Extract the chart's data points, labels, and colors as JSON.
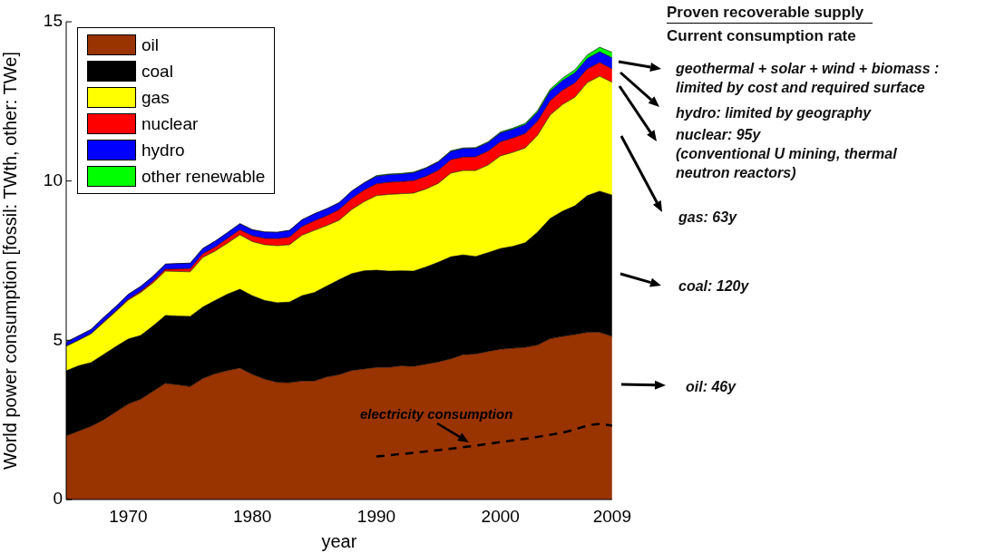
{
  "chart_data": {
    "type": "area",
    "stacked": true,
    "xlabel": "year",
    "ylabel": "World power consumption [fossil: TWth, other: TWe]",
    "x": [
      1965,
      1966,
      1967,
      1968,
      1969,
      1970,
      1971,
      1972,
      1973,
      1974,
      1975,
      1976,
      1977,
      1978,
      1979,
      1980,
      1981,
      1982,
      1983,
      1984,
      1985,
      1986,
      1987,
      1988,
      1989,
      1990,
      1991,
      1992,
      1993,
      1994,
      1995,
      1996,
      1997,
      1998,
      1999,
      2000,
      2001,
      2002,
      2003,
      2004,
      2005,
      2006,
      2007,
      2008,
      2009
    ],
    "xlim": [
      1965,
      2009
    ],
    "xticks": [
      1970,
      1980,
      1990,
      2000,
      2009
    ],
    "ylim": [
      0,
      15
    ],
    "yticks": [
      0,
      5,
      10,
      15
    ],
    "legend": "top left",
    "series": [
      {
        "name": "oil",
        "color": "#993300",
        "values": [
          2.0,
          2.15,
          2.3,
          2.5,
          2.75,
          3.0,
          3.15,
          3.4,
          3.65,
          3.6,
          3.55,
          3.8,
          3.95,
          4.05,
          4.13,
          3.93,
          3.78,
          3.68,
          3.67,
          3.72,
          3.72,
          3.85,
          3.92,
          4.05,
          4.1,
          4.15,
          4.15,
          4.2,
          4.18,
          4.25,
          4.32,
          4.42,
          4.55,
          4.57,
          4.65,
          4.72,
          4.75,
          4.78,
          4.85,
          5.05,
          5.12,
          5.18,
          5.25,
          5.25,
          5.12
        ]
      },
      {
        "name": "coal",
        "color": "#000000",
        "values": [
          2.04,
          2.05,
          2.0,
          2.05,
          2.05,
          2.04,
          2.0,
          2.05,
          2.13,
          2.16,
          2.2,
          2.24,
          2.3,
          2.4,
          2.47,
          2.47,
          2.47,
          2.5,
          2.53,
          2.68,
          2.78,
          2.85,
          2.98,
          3.04,
          3.08,
          3.05,
          3.02,
          2.98,
          2.99,
          3.05,
          3.13,
          3.2,
          3.13,
          3.06,
          3.1,
          3.16,
          3.2,
          3.28,
          3.55,
          3.77,
          3.93,
          4.04,
          4.29,
          4.43,
          4.44
        ]
      },
      {
        "name": "gas",
        "color": "#ffff00",
        "values": [
          0.77,
          0.8,
          0.9,
          1.0,
          1.1,
          1.22,
          1.35,
          1.35,
          1.39,
          1.4,
          1.4,
          1.56,
          1.55,
          1.6,
          1.71,
          1.7,
          1.75,
          1.79,
          1.8,
          1.9,
          1.95,
          1.9,
          1.87,
          2.01,
          2.17,
          2.34,
          2.41,
          2.42,
          2.45,
          2.45,
          2.48,
          2.63,
          2.65,
          2.7,
          2.75,
          2.91,
          2.95,
          2.98,
          3.04,
          3.25,
          3.35,
          3.41,
          3.55,
          3.61,
          3.54
        ]
      },
      {
        "name": "nuclear",
        "color": "#ff0000",
        "values": [
          0.01,
          0.01,
          0.01,
          0.02,
          0.02,
          0.03,
          0.04,
          0.05,
          0.06,
          0.08,
          0.1,
          0.11,
          0.13,
          0.15,
          0.16,
          0.18,
          0.2,
          0.22,
          0.24,
          0.27,
          0.3,
          0.31,
          0.33,
          0.35,
          0.36,
          0.37,
          0.38,
          0.38,
          0.39,
          0.4,
          0.41,
          0.42,
          0.42,
          0.43,
          0.44,
          0.44,
          0.45,
          0.45,
          0.44,
          0.45,
          0.45,
          0.45,
          0.43,
          0.43,
          0.42
        ]
      },
      {
        "name": "hydro",
        "color": "#0000ff",
        "values": [
          0.12,
          0.13,
          0.13,
          0.14,
          0.14,
          0.15,
          0.15,
          0.16,
          0.16,
          0.17,
          0.17,
          0.17,
          0.18,
          0.18,
          0.19,
          0.19,
          0.2,
          0.2,
          0.21,
          0.21,
          0.22,
          0.22,
          0.22,
          0.23,
          0.23,
          0.24,
          0.24,
          0.24,
          0.25,
          0.25,
          0.26,
          0.26,
          0.27,
          0.27,
          0.27,
          0.28,
          0.28,
          0.28,
          0.29,
          0.3,
          0.31,
          0.32,
          0.33,
          0.34,
          0.35
        ]
      },
      {
        "name": "other renewable",
        "color": "#00ff00",
        "values": [
          0,
          0,
          0,
          0,
          0,
          0,
          0,
          0,
          0,
          0,
          0,
          0,
          0,
          0,
          0,
          0,
          0,
          0,
          0,
          0,
          0,
          0,
          0,
          0,
          0,
          0.02,
          0.02,
          0.02,
          0.02,
          0.02,
          0.02,
          0.02,
          0.02,
          0.02,
          0.02,
          0.03,
          0.03,
          0.04,
          0.05,
          0.06,
          0.07,
          0.09,
          0.11,
          0.14,
          0.17
        ]
      },
      {
        "name": "electricity consumption",
        "type": "line",
        "color": "#000000",
        "line_style": "dashed",
        "x": [
          1990,
          1995,
          2000,
          2005,
          2008,
          2009
        ],
        "values": [
          1.35,
          1.55,
          1.8,
          2.1,
          2.37,
          2.32
        ]
      }
    ],
    "annotations": [
      "Proven recoverable supply",
      "Current consumption rate",
      "geothermal + solar + wind + biomass :\nlimited by cost and required surface",
      "hydro: limited by geography",
      "nuclear: 95y\n(conventional U mining, thermal\nneutron reactors)",
      "gas: 63y",
      "coal: 120y",
      "oil: 46y"
    ]
  }
}
